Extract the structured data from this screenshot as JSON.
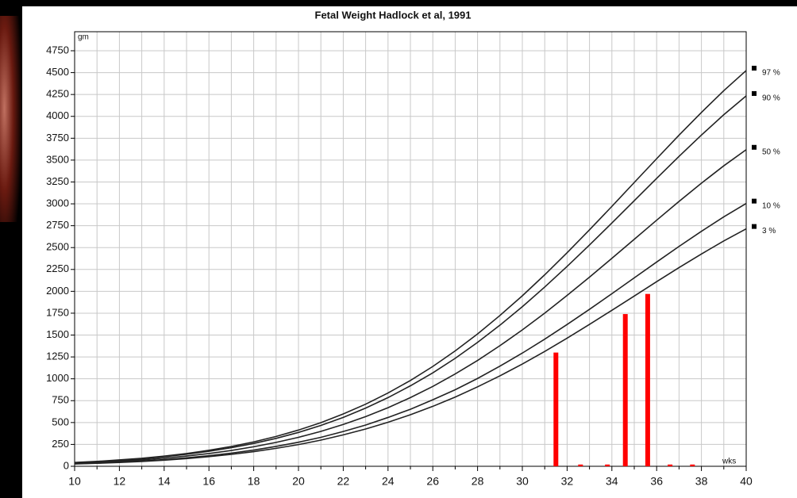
{
  "chart_data": {
    "type": "line",
    "title": "Fetal Weight Hadlock et al, 1991",
    "y_label": "gm",
    "x_label": "wks",
    "x": [
      10,
      11,
      12,
      13,
      14,
      15,
      16,
      17,
      18,
      19,
      20,
      21,
      22,
      23,
      24,
      25,
      26,
      27,
      28,
      29,
      30,
      31,
      32,
      33,
      34,
      35,
      36,
      37,
      38,
      39,
      40
    ],
    "series": [
      {
        "name": "97 %",
        "color": "#222222",
        "values": [
          44,
          56,
          73,
          91,
          116,
          146,
          183,
          226,
          279,
          341,
          414,
          499,
          598,
          710,
          838,
          981,
          1141,
          1319,
          1513,
          1724,
          1949,
          2189,
          2441,
          2703,
          2971,
          3244,
          3516,
          3785,
          4045,
          4294,
          4524
        ]
      },
      {
        "name": "90 %",
        "color": "#222222",
        "values": [
          41,
          53,
          68,
          85,
          109,
          137,
          171,
          212,
          261,
          319,
          387,
          467,
          559,
          665,
          785,
          920,
          1068,
          1234,
          1416,
          1613,
          1824,
          2049,
          2285,
          2530,
          2781,
          3036,
          3291,
          3543,
          3786,
          4019,
          4234
        ]
      },
      {
        "name": "50 %",
        "color": "#222222",
        "values": [
          35,
          45,
          58,
          73,
          93,
          117,
          146,
          181,
          223,
          273,
          331,
          399,
          478,
          568,
          670,
          785,
          913,
          1055,
          1210,
          1379,
          1559,
          1751,
          1953,
          2162,
          2377,
          2595,
          2813,
          3028,
          3236,
          3435,
          3619
        ]
      },
      {
        "name": "10 %",
        "color": "#222222",
        "values": [
          29,
          37,
          48,
          61,
          77,
          97,
          121,
          150,
          185,
          227,
          275,
          331,
          398,
          471,
          558,
          652,
          760,
          875,
          1004,
          1145,
          1294,
          1453,
          1621,
          1794,
          1973,
          2154,
          2335,
          2513,
          2686,
          2851,
          3004
        ]
      },
      {
        "name": "3 %",
        "color": "#222222",
        "values": [
          26,
          34,
          44,
          55,
          70,
          88,
          110,
          136,
          167,
          205,
          248,
          299,
          359,
          426,
          503,
          589,
          685,
          791,
          908,
          1034,
          1169,
          1313,
          1465,
          1622,
          1783,
          1946,
          2110,
          2271,
          2427,
          2576,
          2714
        ]
      }
    ],
    "measurements": {
      "color": "#ff0000",
      "x": [
        31.5,
        32.6,
        33.8,
        34.6,
        35.6,
        36.6,
        37.6
      ],
      "values": [
        1300,
        20,
        20,
        1740,
        1970,
        20,
        20
      ]
    },
    "xlim": [
      10,
      40
    ],
    "xticks": [
      10,
      12,
      14,
      16,
      18,
      20,
      22,
      24,
      26,
      28,
      30,
      32,
      34,
      36,
      38,
      40
    ],
    "ylim": [
      0,
      4750
    ],
    "yticks": [
      0,
      250,
      500,
      750,
      1000,
      1250,
      1500,
      1750,
      2000,
      2250,
      2500,
      2750,
      3000,
      3250,
      3500,
      3750,
      4000,
      4250,
      4500,
      4750
    ],
    "grid": true
  }
}
